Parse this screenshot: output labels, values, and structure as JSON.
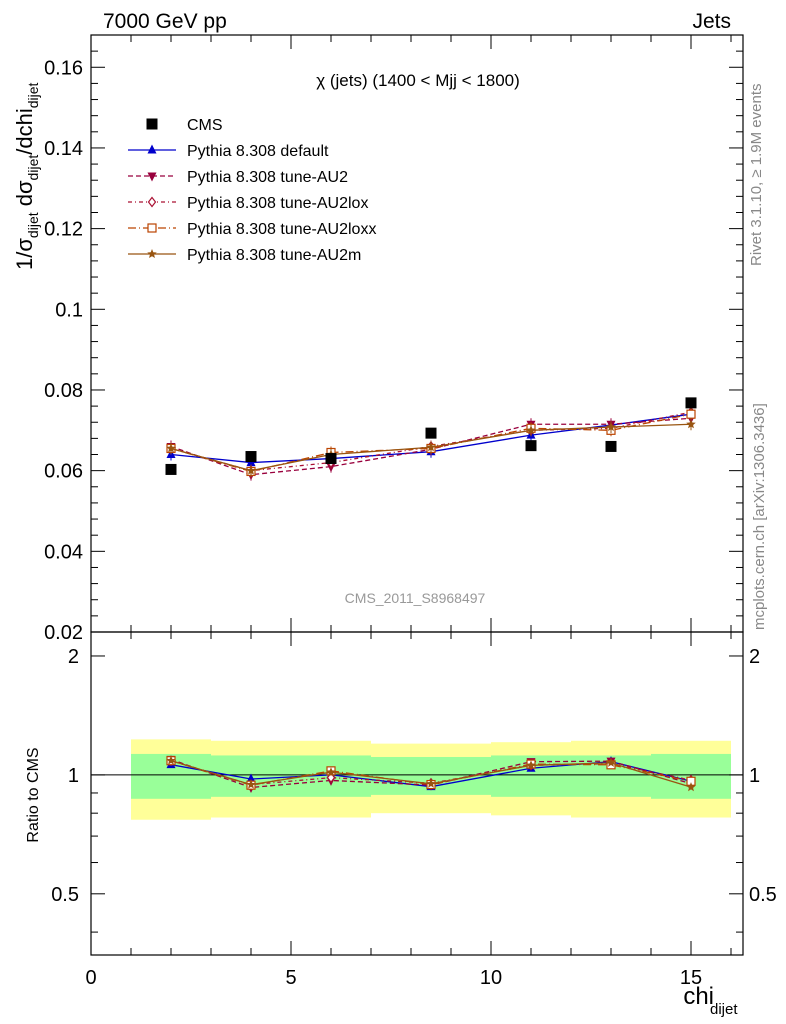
{
  "header": {
    "left": "7000 GeV pp",
    "right": "Jets"
  },
  "side_labels": {
    "rivet": "Rivet 3.1.10, ≥ 1.9M events",
    "mcplots": "mcplots.cern.ch [arXiv:1306.3436]"
  },
  "chart_data": {
    "type": "line",
    "title": "χ (jets) (1400 < Mjj < 1800)",
    "watermark": "CMS_2011_S8968497",
    "xlabel": "chi",
    "xlabel_sub": "dijet",
    "xlim": [
      0,
      16.3
    ],
    "xticks": [
      0,
      5,
      10,
      15
    ],
    "ylabel_main": "1/σ_dijet dσ_dijet/dchi_dijet",
    "ylim_main": [
      0.02,
      0.168
    ],
    "yticks_main": [
      "0.02",
      "0.04",
      "0.06",
      "0.08",
      "0.1",
      "0.12",
      "0.14",
      "0.16"
    ],
    "ylabel_ratio": "Ratio to CMS",
    "ylim_ratio": [
      0.35,
      2.3
    ],
    "yticks_ratio": [
      "0.5",
      "1",
      "2"
    ],
    "bins": [
      [
        1,
        3
      ],
      [
        3,
        5
      ],
      [
        5,
        7
      ],
      [
        7,
        10
      ],
      [
        10,
        12
      ],
      [
        12,
        14
      ],
      [
        14,
        16
      ]
    ],
    "x": [
      2,
      4,
      6,
      8.5,
      11,
      13,
      15
    ],
    "data": {
      "name": "CMS",
      "values": [
        0.0603,
        0.0635,
        0.063,
        0.0693,
        0.0662,
        0.066,
        0.0768
      ],
      "band_inner": [
        0.13,
        0.12,
        0.12,
        0.11,
        0.12,
        0.12,
        0.13
      ],
      "band_outer": [
        0.23,
        0.22,
        0.22,
        0.2,
        0.21,
        0.22,
        0.22
      ]
    },
    "series": [
      {
        "name": "Pythia 8.308 default",
        "color": "#0000cc",
        "dash": "",
        "marker": "triangle-up",
        "values": [
          0.064,
          0.062,
          0.063,
          0.0647,
          0.0688,
          0.0713,
          0.074
        ]
      },
      {
        "name": "Pythia 8.308 tune-AU2",
        "color": "#99003d",
        "dash": "5,3",
        "marker": "triangle-down",
        "values": [
          0.066,
          0.059,
          0.061,
          0.0653,
          0.0715,
          0.0715,
          0.073
        ]
      },
      {
        "name": "Pythia 8.308 tune-AU2lox",
        "color": "#aa1133",
        "dash": "4,3,1,3",
        "marker": "diamond-open",
        "values": [
          0.0655,
          0.06,
          0.062,
          0.066,
          0.07,
          0.0705,
          0.0745
        ]
      },
      {
        "name": "Pythia 8.308 tune-AU2loxx",
        "color": "#bb4400",
        "dash": "8,3,1,3",
        "marker": "square-open",
        "values": [
          0.0655,
          0.0598,
          0.0645,
          0.0655,
          0.0705,
          0.07,
          0.074
        ]
      },
      {
        "name": "Pythia 8.308 tune-AU2m",
        "color": "#995511",
        "dash": "",
        "marker": "star",
        "values": [
          0.0655,
          0.06,
          0.064,
          0.0658,
          0.07,
          0.0708,
          0.0715
        ]
      }
    ]
  }
}
